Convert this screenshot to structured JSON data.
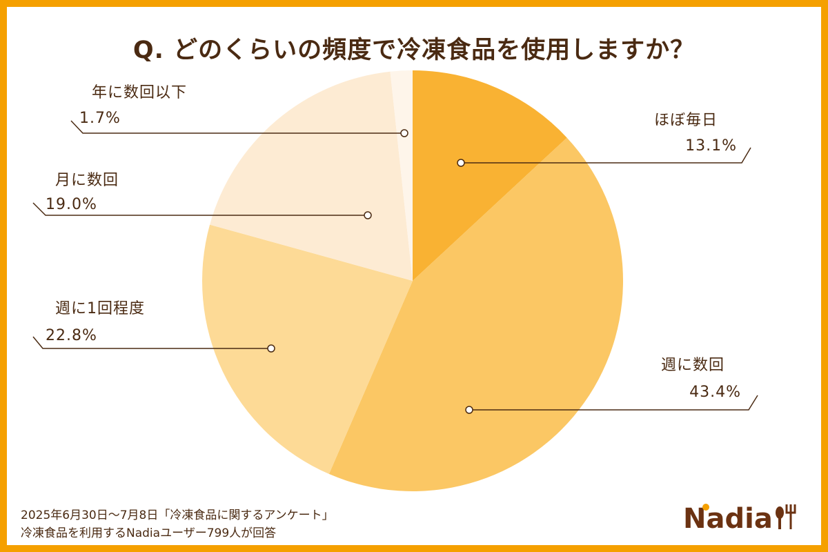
{
  "chart_data": {
    "type": "pie",
    "title": "Q. どのくらいの頻度で冷凍食品を使用しますか？",
    "start": "top",
    "direction": "clockwise",
    "slices": [
      {
        "label": "ほぼ毎日",
        "value": 13.1,
        "value_label": "13.1%",
        "color": "#f9b233"
      },
      {
        "label": "週に数回",
        "value": 43.4,
        "value_label": "43.4%",
        "color": "#fbc764"
      },
      {
        "label": "週に1回程度",
        "value": 22.8,
        "value_label": "22.8%",
        "color": "#fdda96"
      },
      {
        "label": "月に数回",
        "value": 19.0,
        "value_label": "19.0%",
        "color": "#fdebd3"
      },
      {
        "label": "年に数回以下",
        "value": 1.7,
        "value_label": "1.7%",
        "color": "#fef5ea"
      }
    ]
  },
  "footer": {
    "line1": "2025年6月30日〜7月8日「冷凍食品に関するアンケート」",
    "line2": "冷凍食品を利用するNadiaユーザー799人が回答"
  },
  "logo": {
    "text": "Nadia"
  },
  "colors": {
    "border": "#f5a000",
    "text": "#4a2a12"
  }
}
